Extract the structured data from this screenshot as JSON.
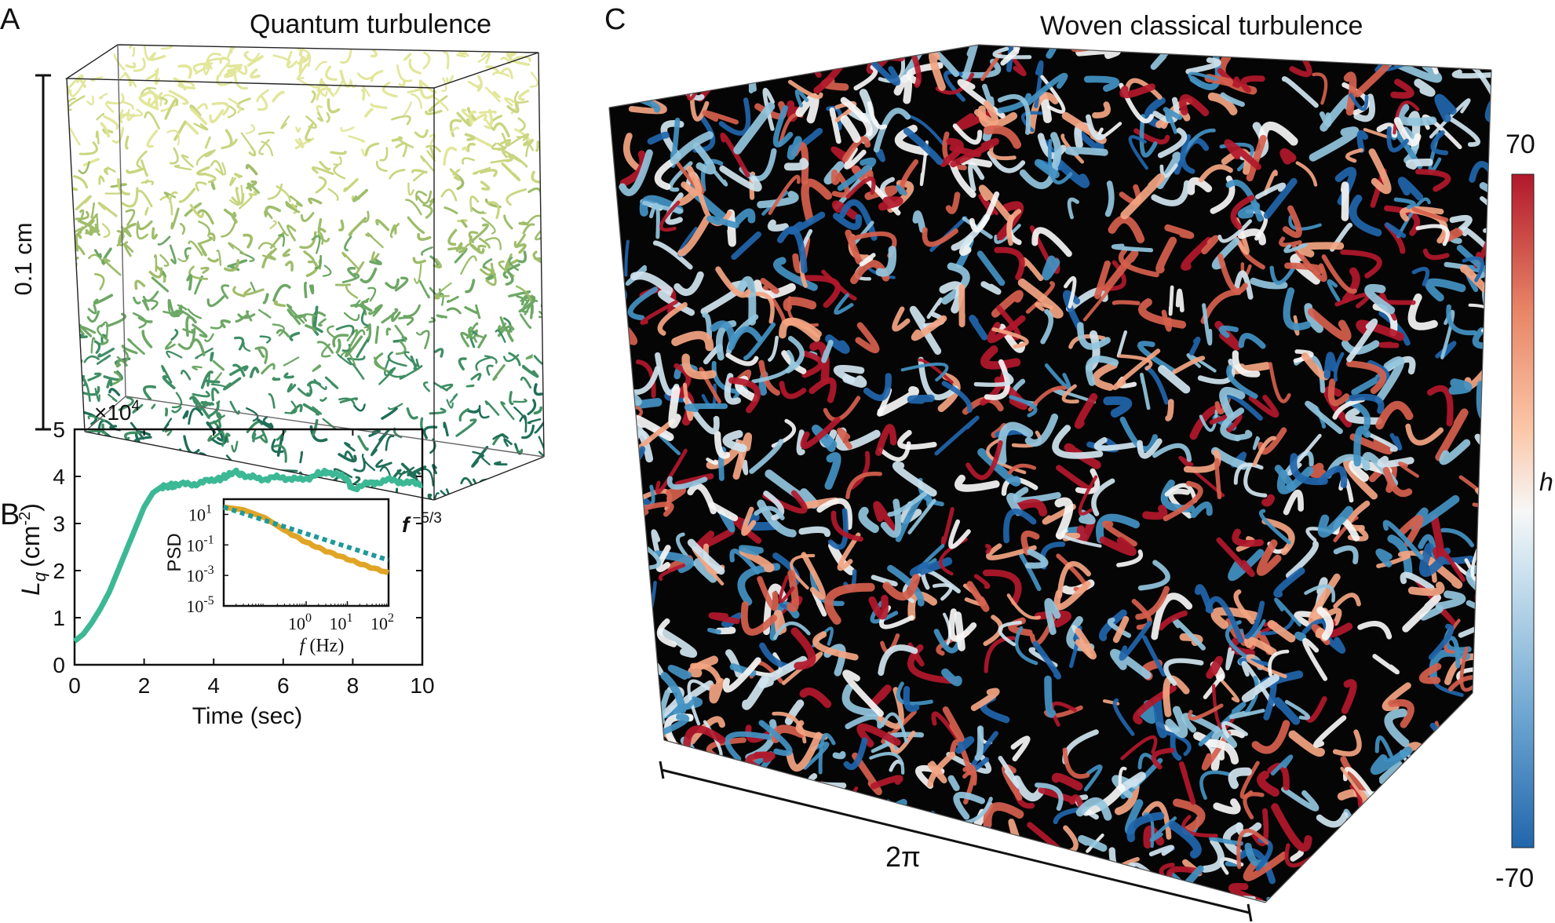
{
  "panels": {
    "a": {
      "letter": "A",
      "title": "Quantum turbulence",
      "scale_label": "0.1 cm",
      "tube_colors": [
        "#e2e69a",
        "#c9d57f",
        "#9fbd6a",
        "#6da765",
        "#3f8e64",
        "#1f6e58"
      ]
    },
    "b": {
      "letter": "B",
      "multiplier": "×10",
      "multiplier_exp": "4",
      "ylabel_main": "L",
      "ylabel_sub": "q",
      "ylabel_unit": "(cm",
      "ylabel_unit_exp": "-2",
      "ylabel_close": ")",
      "xlabel": "Time (sec)",
      "inset": {
        "ylabel": "PSD",
        "xlabel_var": "f",
        "xlabel_unit": "(Hz)",
        "slope_base": "f",
        "slope_exp": "−5/3"
      }
    },
    "c": {
      "letter": "C",
      "title": "Woven classical turbulence",
      "scale_label": "2π",
      "colorbar_max": "70",
      "colorbar_min": "-70",
      "colorbar_label": "h",
      "tube_colors": [
        "#b2182b",
        "#d6604d",
        "#f4a582",
        "#f7f7f7",
        "#d1e5f0",
        "#92c5de",
        "#4393c3",
        "#2166ac"
      ]
    }
  },
  "chart_data": [
    {
      "type": "line",
      "panel": "B",
      "xlabel": "Time (sec)",
      "ylabel": "L_q (cm^-2)",
      "y_multiplier": "×10^4",
      "xlim": [
        0,
        10
      ],
      "ylim": [
        0,
        5
      ],
      "xticks": [
        0,
        2,
        4,
        6,
        8,
        10
      ],
      "yticks": [
        0,
        1,
        2,
        3,
        4,
        5
      ],
      "color": "#3cb895",
      "series": [
        {
          "x": [
            0,
            0.25,
            0.5,
            0.75,
            1.0,
            1.25,
            1.5,
            1.75,
            2.0,
            2.25,
            2.5,
            2.75,
            3.0,
            3.5,
            4.0,
            4.3,
            4.6,
            5.0,
            5.5,
            6.0,
            6.5,
            7.0,
            7.3,
            7.8,
            8.0,
            8.5,
            9.0,
            9.5,
            10.0
          ],
          "y": [
            0.5,
            0.65,
            0.9,
            1.2,
            1.55,
            2.0,
            2.45,
            2.9,
            3.35,
            3.65,
            3.78,
            3.8,
            3.82,
            3.85,
            3.92,
            3.98,
            4.1,
            3.98,
            3.95,
            3.98,
            3.92,
            4.05,
            4.1,
            3.95,
            3.75,
            3.85,
            3.92,
            3.88,
            3.82
          ]
        }
      ]
    },
    {
      "type": "line",
      "panel": "B-inset",
      "xlabel": "f (Hz)",
      "ylabel": "PSD",
      "xscale": "log",
      "yscale": "log",
      "xlim": [
        0.01,
        100
      ],
      "ylim": [
        1e-05,
        100
      ],
      "xtick_labels": [
        "10^0",
        "10^1",
        "10^2"
      ],
      "ytick_labels": [
        "10^1",
        "10^-1",
        "10^-3",
        "10^-5"
      ],
      "series": [
        {
          "color": "#e0a526",
          "x": [
            0.01,
            0.03,
            0.1,
            0.3,
            1,
            3,
            10,
            30,
            100
          ],
          "y": [
            30,
            20,
            6,
            0.9,
            0.15,
            0.04,
            0.012,
            0.004,
            0.0015
          ]
        },
        {
          "name": "f^-5/3",
          "color": "#1f9a99",
          "dashed": true,
          "x": [
            0.01,
            100
          ],
          "y": [
            30,
            0.01
          ]
        }
      ]
    },
    {
      "type": "colorbar",
      "panel": "C",
      "label": "h",
      "range": [
        -70,
        70
      ],
      "colors": [
        "#2166ac",
        "#6fa7d2",
        "#d1e5f0",
        "#f7f7f7",
        "#fbc7a8",
        "#e88466",
        "#b2182b"
      ]
    }
  ]
}
